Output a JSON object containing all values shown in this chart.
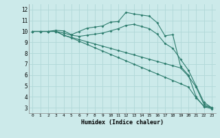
{
  "xlabel": "Humidex (Indice chaleur)",
  "bg_color": "#cceaea",
  "grid_color": "#b0d8d8",
  "line_color": "#2e7d6e",
  "xlim": [
    -0.5,
    23.5
  ],
  "ylim": [
    2.5,
    12.5
  ],
  "xticks": [
    0,
    1,
    2,
    3,
    4,
    5,
    6,
    7,
    8,
    9,
    10,
    11,
    12,
    13,
    14,
    15,
    16,
    17,
    18,
    19,
    20,
    21,
    22,
    23
  ],
  "yticks": [
    3,
    4,
    5,
    6,
    7,
    8,
    9,
    10,
    11,
    12
  ],
  "lines": [
    [
      10.0,
      10.0,
      10.0,
      10.1,
      10.05,
      9.7,
      10.0,
      10.3,
      10.4,
      10.5,
      10.85,
      10.9,
      11.75,
      11.6,
      11.5,
      11.4,
      10.8,
      9.6,
      9.7,
      6.8,
      6.0,
      4.0,
      3.1,
      2.9
    ],
    [
      10.0,
      10.0,
      10.0,
      10.0,
      9.85,
      9.65,
      9.55,
      9.65,
      9.75,
      9.85,
      10.05,
      10.25,
      10.55,
      10.65,
      10.45,
      10.25,
      9.75,
      8.9,
      8.45,
      7.45,
      6.45,
      5.0,
      3.5,
      3.0
    ],
    [
      10.0,
      10.0,
      10.0,
      10.0,
      9.65,
      9.45,
      9.25,
      9.05,
      8.85,
      8.65,
      8.45,
      8.25,
      8.05,
      7.85,
      7.65,
      7.45,
      7.25,
      7.05,
      6.85,
      6.65,
      5.9,
      4.9,
      3.3,
      3.0
    ],
    [
      10.0,
      10.0,
      10.0,
      10.0,
      9.65,
      9.4,
      9.1,
      8.8,
      8.5,
      8.2,
      7.9,
      7.6,
      7.3,
      7.0,
      6.7,
      6.4,
      6.1,
      5.8,
      5.5,
      5.2,
      4.9,
      3.9,
      3.15,
      3.0
    ]
  ]
}
